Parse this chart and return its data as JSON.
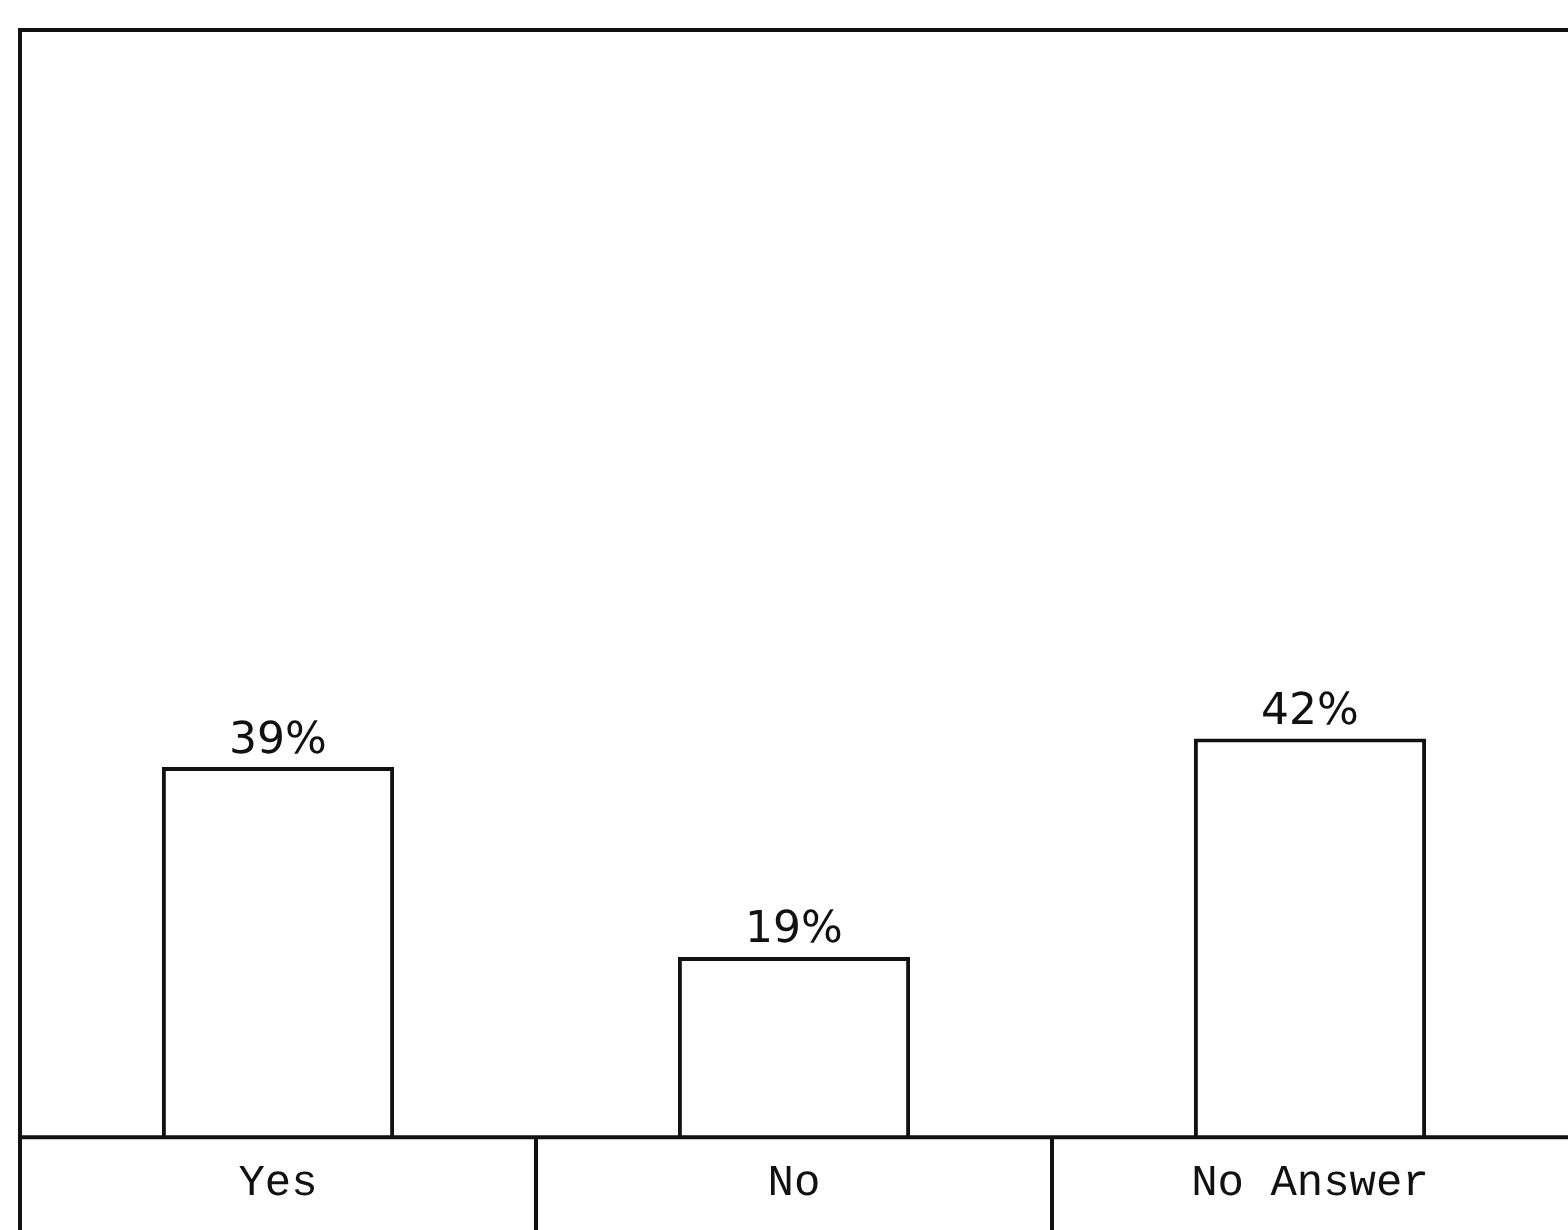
{
  "chart_data": {
    "type": "bar",
    "categories": [
      "Yes",
      "No",
      "No Answer"
    ],
    "values": [
      39,
      19,
      42
    ],
    "value_labels": [
      "39%",
      "19%",
      "42%"
    ],
    "color": "#ffffff",
    "grid": false,
    "legend": false
  }
}
